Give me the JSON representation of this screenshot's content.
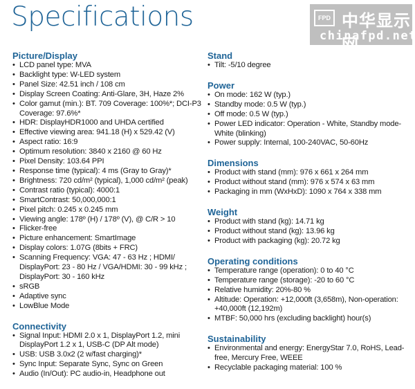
{
  "title": "Specifications",
  "columns": {
    "left": [
      {
        "heading": "Picture/Display",
        "items": [
          "LCD panel type: MVA",
          "Backlight type: W-LED system",
          "Panel Size: 42.51 inch / 108 cm",
          "Display Screen Coating: Anti-Glare, 3H, Haze 2%",
          "Color gamut (min.): BT. 709 Coverage: 100%*; DCI-P3 Coverage: 97.6%*",
          "HDR: DisplayHDR1000 and UHDA certified",
          "Effective viewing area: 941.18 (H) x 529.42 (V)",
          "Aspect ratio: 16:9",
          "Optimum resolution: 3840 x 2160 @ 60 Hz",
          "Pixel Density: 103.64 PPI",
          "Response time (typical): 4 ms (Gray to Gray)*",
          "Brightness: 720 cd/m² (typical), 1,000 cd/m² (peak)",
          "Contrast ratio (typical): 4000:1",
          "SmartContrast: 50,000,000:1",
          "Pixel pitch: 0.245 x 0.245 mm",
          "Viewing angle: 178º (H) / 178º (V), @ C/R > 10",
          "Flicker-free",
          "Picture enhancement: SmartImage",
          "Display colors: 1.07G (8bits + FRC)",
          "Scanning Frequency: VGA: 47 - 63 Hz ; HDMI/ DisplayPort: 23 - 80 Hz / VGA/HDMI: 30 - 99 kHz ; DisplayPort: 30 - 160 kHz",
          "sRGB",
          "Adaptive sync",
          "LowBlue Mode"
        ]
      },
      {
        "heading": "Connectivity",
        "items": [
          "Signal Input: HDMI 2.0 x 1, DisplayPort 1.2, mini DisplayPort 1.2 x 1, USB-C (DP Alt mode)",
          "USB: USB 3.0x2 (2 w/fast charging)*",
          "Sync Input: Separate Sync, Sync on Green",
          "Audio (In/Out): PC audio-in, Headphone out"
        ]
      }
    ],
    "right": [
      {
        "heading": "Stand",
        "items": [
          "Tilt: -5/10 degree"
        ]
      },
      {
        "heading": "Power",
        "items": [
          "On mode: 162 W (typ.)",
          "Standby mode: 0.5 W (typ.)",
          "Off mode: 0.5 W (typ.)",
          "Power LED indicator: Operation - White, Standby mode- White (blinking)",
          "Power supply: Internal, 100-240VAC, 50-60Hz"
        ]
      },
      {
        "heading": "Dimensions",
        "items": [
          "Product with stand (mm): 976 x 661 x 264 mm",
          "Product without stand (mm): 976 x 574 x 63 mm",
          "Packaging in mm (WxHxD): 1090 x 764 x 338 mm"
        ]
      },
      {
        "heading": "Weight",
        "items": [
          "Product with stand (kg): 14.71 kg",
          "Product without stand (kg): 13.96 kg",
          "Product with packaging (kg): 20.72 kg"
        ]
      },
      {
        "heading": "Operating conditions",
        "items": [
          "Temperature range (operation): 0 to 40 °C",
          "Temperature range (storage): -20 to 60 °C",
          "Relative humidity: 20%-80 %",
          "Altitude: Operation: +12,000ft (3,658m), Non-operation: +40,000ft (12,192m)",
          "MTBF: 50,000 hrs (excluding backlight) hour(s)"
        ]
      },
      {
        "heading": "Sustainability",
        "items": [
          "Environmental and energy: EnergyStar 7.0, RoHS, Lead-free, Mercury Free, WEEE",
          "Recyclable packaging material: 100 %"
        ]
      }
    ]
  },
  "watermark": {
    "logo": "FPD",
    "cn": "中华显示网",
    "en": "chinafpd.net"
  },
  "colors": {
    "heading": "#1f6497",
    "text": "#1b1b1b"
  }
}
